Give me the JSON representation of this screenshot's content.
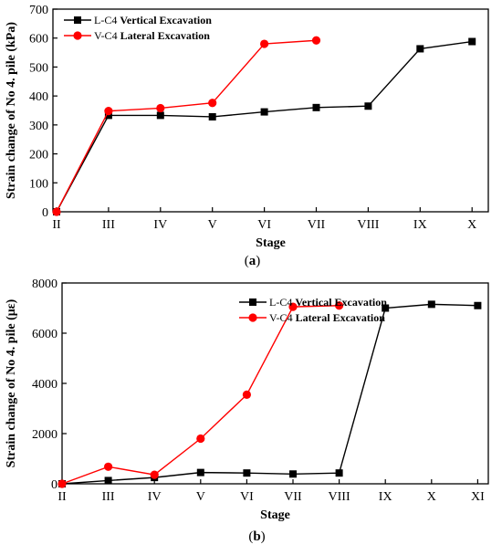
{
  "chart_data": [
    {
      "type": "line",
      "panel_label": "a",
      "xlabel": "Stage",
      "ylabel": "Strain change of  No 4. pile (kPa)",
      "categories": [
        "II",
        "III",
        "IV",
        "V",
        "VI",
        "VII",
        "VIII",
        "IX",
        "X"
      ],
      "ylim": [
        0,
        700
      ],
      "yticks": [
        0,
        100,
        200,
        300,
        400,
        500,
        600,
        700
      ],
      "grid": false,
      "legend_position": "top-left",
      "series": [
        {
          "name_prefix": "L-C4 ",
          "name_emph": "Vertical Excavation",
          "color": "#000000",
          "marker": "square",
          "values": [
            0,
            333,
            333,
            328,
            345,
            360,
            365,
            563,
            588
          ]
        },
        {
          "name_prefix": "V-C4 ",
          "name_emph": "Lateral Excavation",
          "color": "#ff0000",
          "marker": "circle",
          "values": [
            0,
            348,
            358,
            376,
            580,
            592,
            null,
            null,
            null
          ]
        }
      ]
    },
    {
      "type": "line",
      "panel_label": "b",
      "xlabel": "Stage",
      "ylabel": "Strain change of  No 4. pile (με)",
      "categories": [
        "II",
        "III",
        "IV",
        "V",
        "VI",
        "VII",
        "VIII",
        "IX",
        "X",
        "XI"
      ],
      "ylim": [
        0,
        8000
      ],
      "yticks": [
        0,
        2000,
        4000,
        6000,
        8000
      ],
      "grid": false,
      "legend_position": "top-right",
      "series": [
        {
          "name_prefix": "L-C4 ",
          "name_emph": "Vertical Excavation",
          "color": "#000000",
          "marker": "square",
          "values": [
            0,
            130,
            250,
            450,
            430,
            390,
            430,
            7000,
            7150,
            7100
          ]
        },
        {
          "name_prefix": "V-C4 ",
          "name_emph": "Lateral Excavation",
          "color": "#ff0000",
          "marker": "circle",
          "values": [
            0,
            680,
            360,
            1800,
            3550,
            7050,
            7100,
            null,
            null,
            null
          ]
        }
      ]
    }
  ]
}
